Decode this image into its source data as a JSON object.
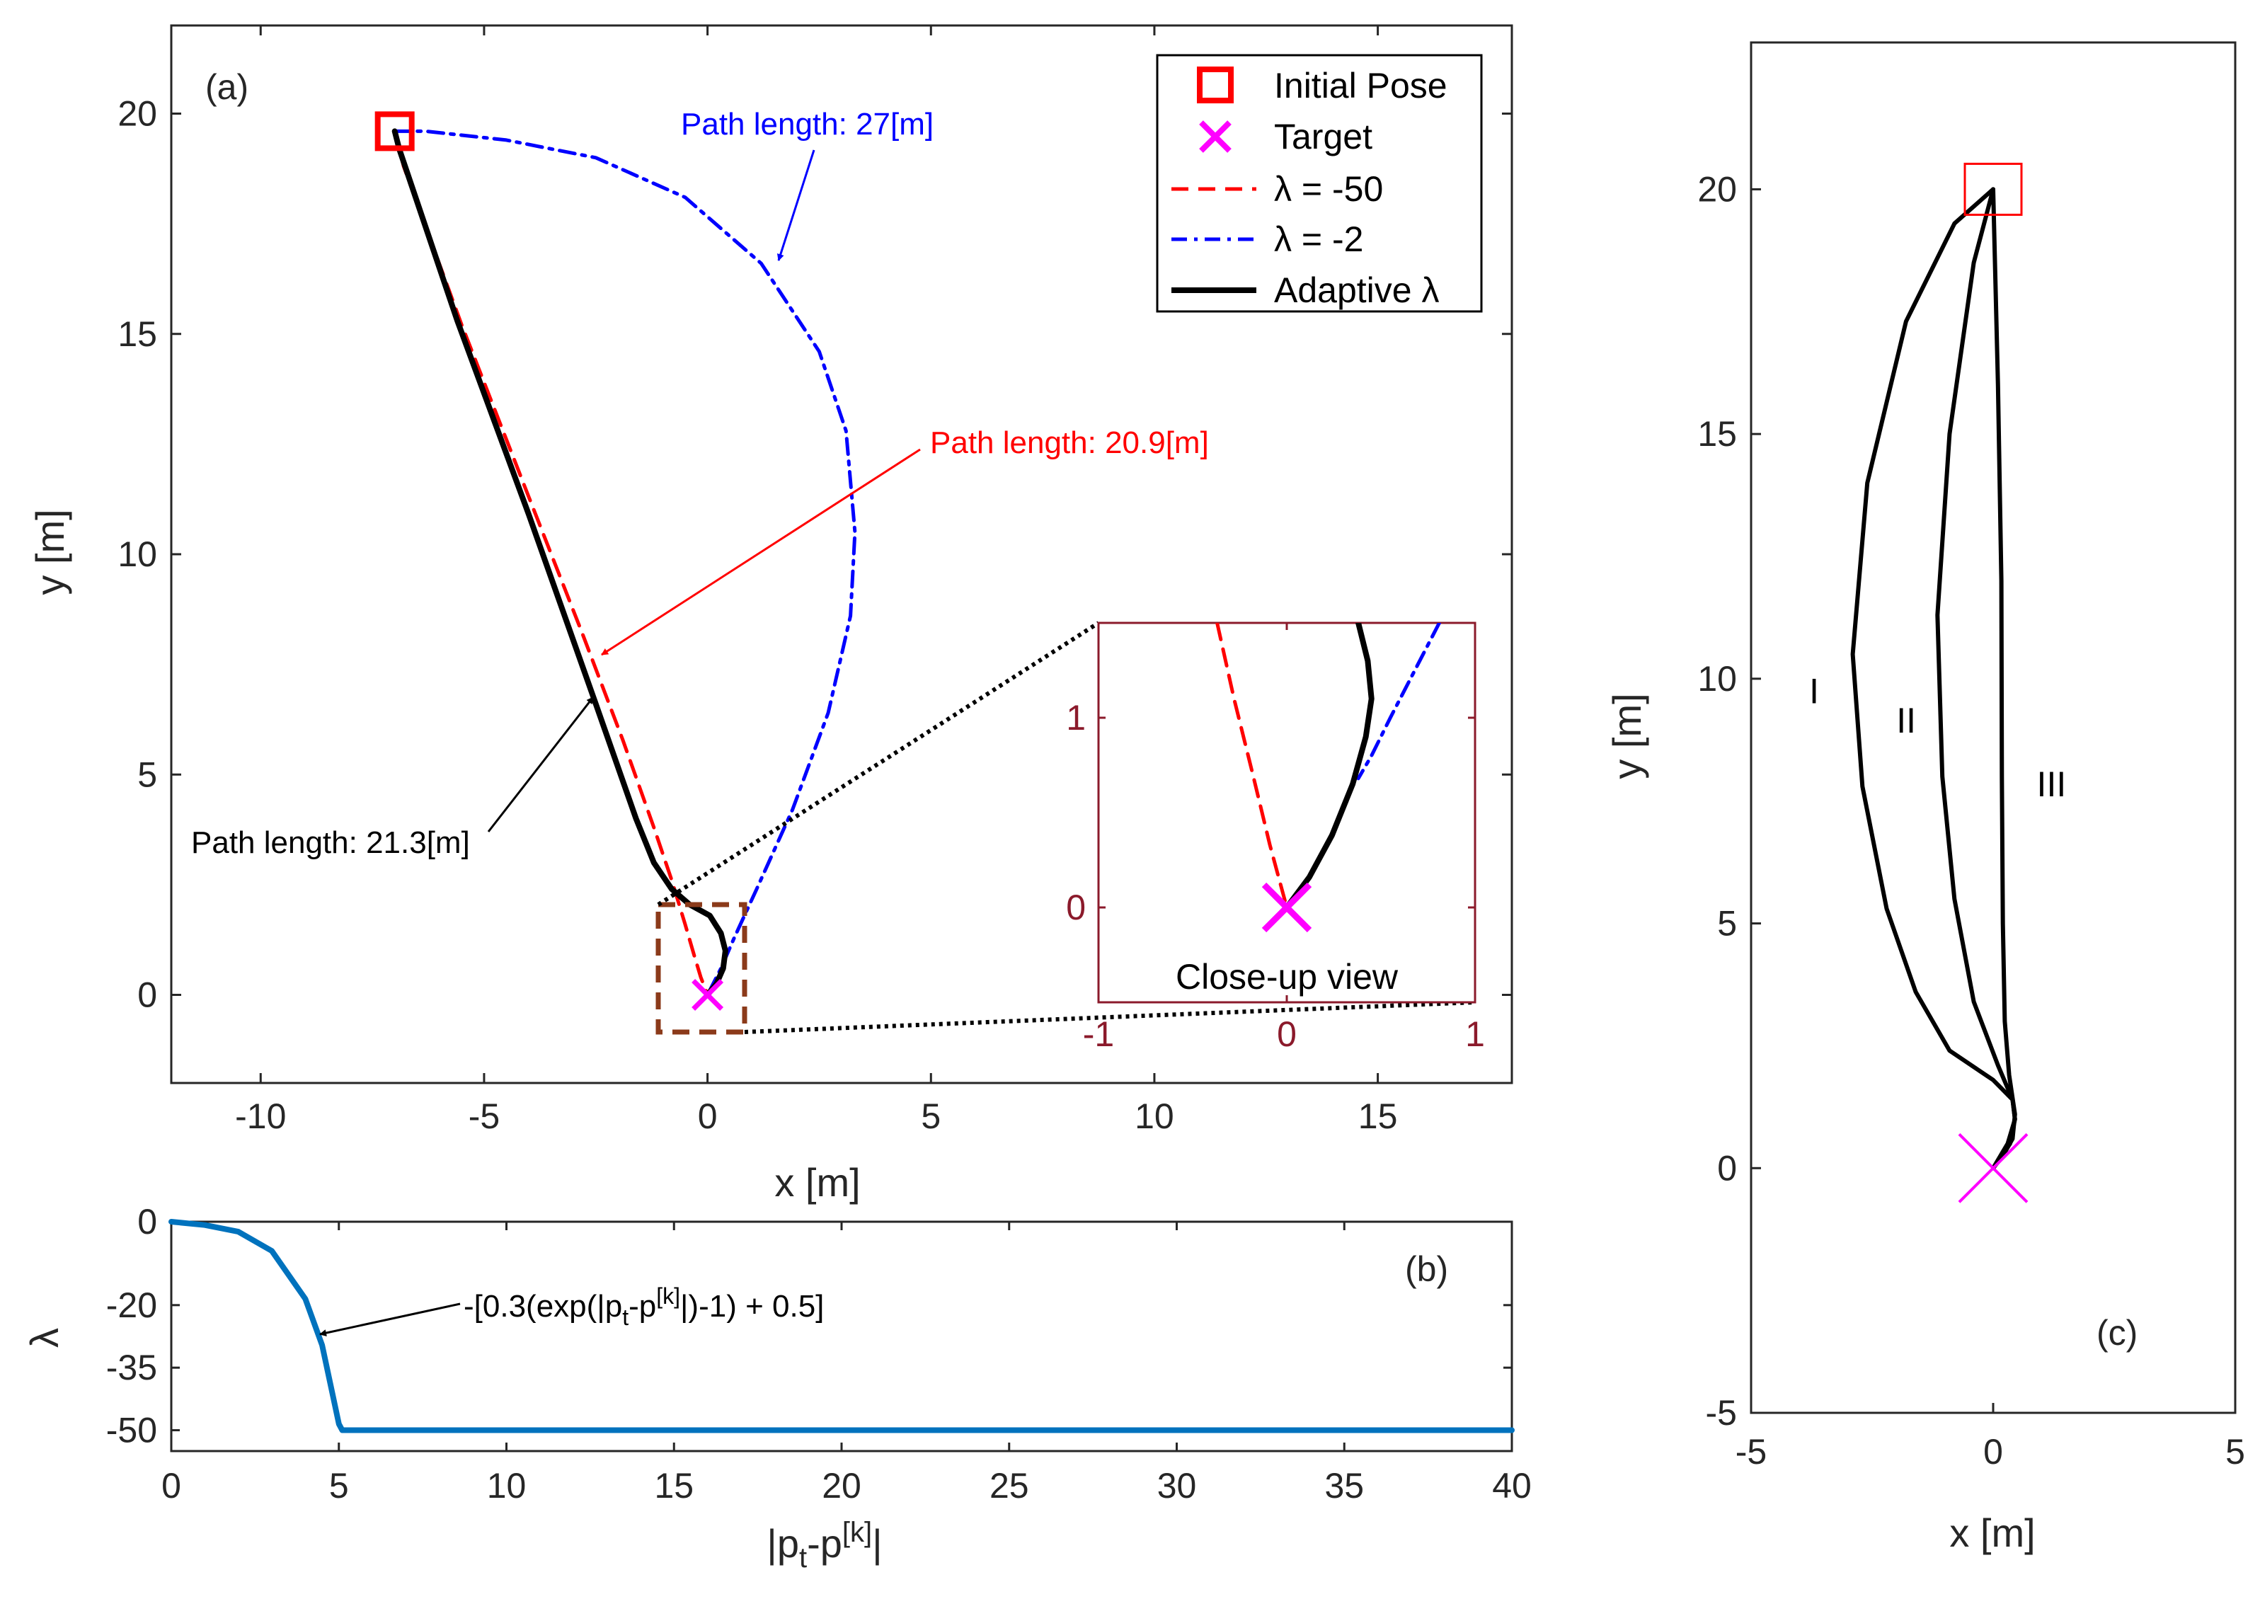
{
  "chart_data": [
    {
      "id": "a",
      "type": "line",
      "panel_label": "(a)",
      "xlabel": "x [m]",
      "ylabel": "y [m]",
      "xlim": [
        -12,
        18
      ],
      "ylim": [
        -2,
        22
      ],
      "xticks": [
        "-10",
        "-5",
        "0",
        "5",
        "10",
        "15"
      ],
      "yticks": [
        "0",
        "5",
        "10",
        "15",
        "20"
      ],
      "legend": {
        "position": "top-right",
        "entries": [
          "Initial Pose",
          "Target",
          "λ = -50",
          "λ = -2",
          "Adaptive λ"
        ]
      },
      "markers": {
        "initial_pose": {
          "x": -7,
          "y": 19.6
        },
        "target": {
          "x": 0,
          "y": 0
        }
      },
      "series": [
        {
          "name": "λ = -50",
          "color": "#ff0000",
          "style": "dashed",
          "x": [
            -7,
            -6.8,
            -5.5,
            -4,
            -2.8,
            -1.9,
            -1.2,
            -0.8,
            -0.5,
            -0.3,
            -0.15,
            0
          ],
          "y": [
            19.6,
            18.8,
            15.2,
            11.3,
            8.2,
            5.8,
            3.8,
            2.6,
            1.6,
            0.9,
            0.4,
            0
          ]
        },
        {
          "name": "λ = -2",
          "color": "#0000ff",
          "style": "dash-dot",
          "x": [
            -7,
            -6.3,
            -4.5,
            -2.5,
            -0.5,
            1.2,
            2.5,
            3.1,
            3.3,
            3.2,
            2.7,
            1.9,
            1.1,
            0.6,
            0.3,
            0
          ],
          "y": [
            19.6,
            19.6,
            19.4,
            19.0,
            18.1,
            16.6,
            14.6,
            12.8,
            10.5,
            8.6,
            6.4,
            4.2,
            2.4,
            1.3,
            0.6,
            0
          ]
        },
        {
          "name": "Adaptive λ",
          "color": "#000000",
          "style": "solid",
          "x": [
            -7,
            -6.9,
            -5.6,
            -4,
            -2.5,
            -1.6,
            -1.2,
            -0.8,
            -0.4,
            0.05,
            0.3,
            0.4,
            0.35,
            0.2,
            0
          ],
          "y": [
            19.6,
            19.2,
            15.3,
            10.9,
            6.6,
            4.0,
            3.0,
            2.4,
            2.05,
            1.8,
            1.4,
            1.0,
            0.6,
            0.25,
            0
          ]
        }
      ],
      "annotations": [
        {
          "text": "Path length: 27[m]",
          "color": "#0000ff",
          "arrow_to": {
            "x": 1.7,
            "y": 16.6
          }
        },
        {
          "text": "Path length: 20.9[m]",
          "color": "#ff0000",
          "arrow_to": {
            "x": -2.2,
            "y": 7.5
          }
        },
        {
          "text": "Path length: 21.3[m]",
          "color": "#000000",
          "arrow_to": {
            "x": -2.4,
            "y": 6.7
          }
        }
      ],
      "inset": {
        "title": "Close-up view",
        "xlim": [
          -1,
          1
        ],
        "ylim": [
          -0.5,
          1.5
        ],
        "xticks": [
          "-1",
          "0",
          "1"
        ],
        "yticks": [
          "0",
          "1"
        ],
        "series": [
          {
            "name": "λ = -50",
            "color": "#ff0000",
            "style": "dashed",
            "x": [
              -0.37,
              -0.28,
              -0.18,
              -0.09,
              0
            ],
            "y": [
              1.5,
              1.1,
              0.7,
              0.33,
              0
            ]
          },
          {
            "name": "λ = -2",
            "color": "#0000ff",
            "style": "dash-dot",
            "x": [
              0.81,
              0.68,
              0.55,
              0.45,
              0.38
            ],
            "y": [
              1.5,
              1.25,
              1.0,
              0.8,
              0.68
            ]
          },
          {
            "name": "Adaptive λ",
            "color": "#000000",
            "style": "solid",
            "x": [
              0.38,
              0.43,
              0.45,
              0.42,
              0.35,
              0.24,
              0.12,
              0
            ],
            "y": [
              1.5,
              1.3,
              1.1,
              0.9,
              0.65,
              0.38,
              0.16,
              0
            ]
          }
        ],
        "target": {
          "x": 0,
          "y": 0
        }
      }
    },
    {
      "id": "b",
      "type": "line",
      "panel_label": "(b)",
      "xlabel": "|p_t-p^[k]|",
      "ylabel": "λ",
      "xlim": [
        0,
        40
      ],
      "ylim": [
        -55,
        0
      ],
      "xticks": [
        "0",
        "5",
        "10",
        "15",
        "20",
        "25",
        "30",
        "35",
        "40"
      ],
      "yticks": [
        "0",
        "-20",
        "-35",
        "-50"
      ],
      "annotation": {
        "text": "-[0.3(exp(|p_t-p^[k]|)-1) + 0.5]",
        "arrow_to": {
          "x": 4.4,
          "y": -25
        }
      },
      "series": [
        {
          "name": "Adaptive λ",
          "color": "#0072bd",
          "x": [
            0,
            1,
            2,
            3,
            4,
            4.5,
            5,
            5.1,
            10,
            20,
            30,
            40
          ],
          "y": [
            0,
            -0.8,
            -2.4,
            -7,
            -18.5,
            -29.6,
            -48.5,
            -50,
            -50,
            -50,
            -50,
            -50
          ]
        }
      ]
    },
    {
      "id": "c",
      "type": "line",
      "panel_label": "(c)",
      "xlabel": "x [m]",
      "ylabel": "y [m]",
      "xlim": [
        -5,
        5
      ],
      "ylim": [
        -5,
        23
      ],
      "xticks": [
        "-5",
        "0",
        "5"
      ],
      "yticks": [
        "-5",
        "0",
        "5",
        "10",
        "15",
        "20"
      ],
      "markers": {
        "initial_pose": {
          "x": 0,
          "y": 20
        },
        "target": {
          "x": 0,
          "y": 0
        }
      },
      "series": [
        {
          "name": "I",
          "color": "#000000",
          "x": [
            0,
            -0.8,
            -1.8,
            -2.6,
            -2.9,
            -2.7,
            -2.2,
            -1.6,
            -0.9,
            0,
            0.4,
            0.45,
            0.35,
            0
          ],
          "y": [
            20,
            19.3,
            17.3,
            14,
            10.5,
            7.8,
            5.3,
            3.6,
            2.4,
            1.8,
            1.4,
            1.0,
            0.5,
            0
          ]
        },
        {
          "name": "II",
          "color": "#000000",
          "x": [
            0,
            -0.4,
            -0.9,
            -1.15,
            -1.05,
            -0.8,
            -0.4,
            0.1,
            0.4,
            0.45,
            0.3,
            0
          ],
          "y": [
            20,
            18.5,
            15,
            11.3,
            8,
            5.5,
            3.4,
            2.1,
            1.4,
            1.0,
            0.5,
            0
          ]
        },
        {
          "name": "III",
          "color": "#000000",
          "x": [
            0,
            0.1,
            0.17,
            0.18,
            0.2,
            0.24,
            0.33,
            0.45,
            0.4,
            0.2,
            0
          ],
          "y": [
            20,
            16,
            12,
            8,
            5,
            3,
            1.9,
            1.1,
            0.6,
            0.25,
            0
          ]
        }
      ],
      "curve_labels": [
        {
          "text": "I",
          "x": -3.8,
          "y": 9.5
        },
        {
          "text": "II",
          "x": -2.0,
          "y": 8.9
        },
        {
          "text": "III",
          "x": 0.9,
          "y": 7.6
        }
      ]
    }
  ]
}
